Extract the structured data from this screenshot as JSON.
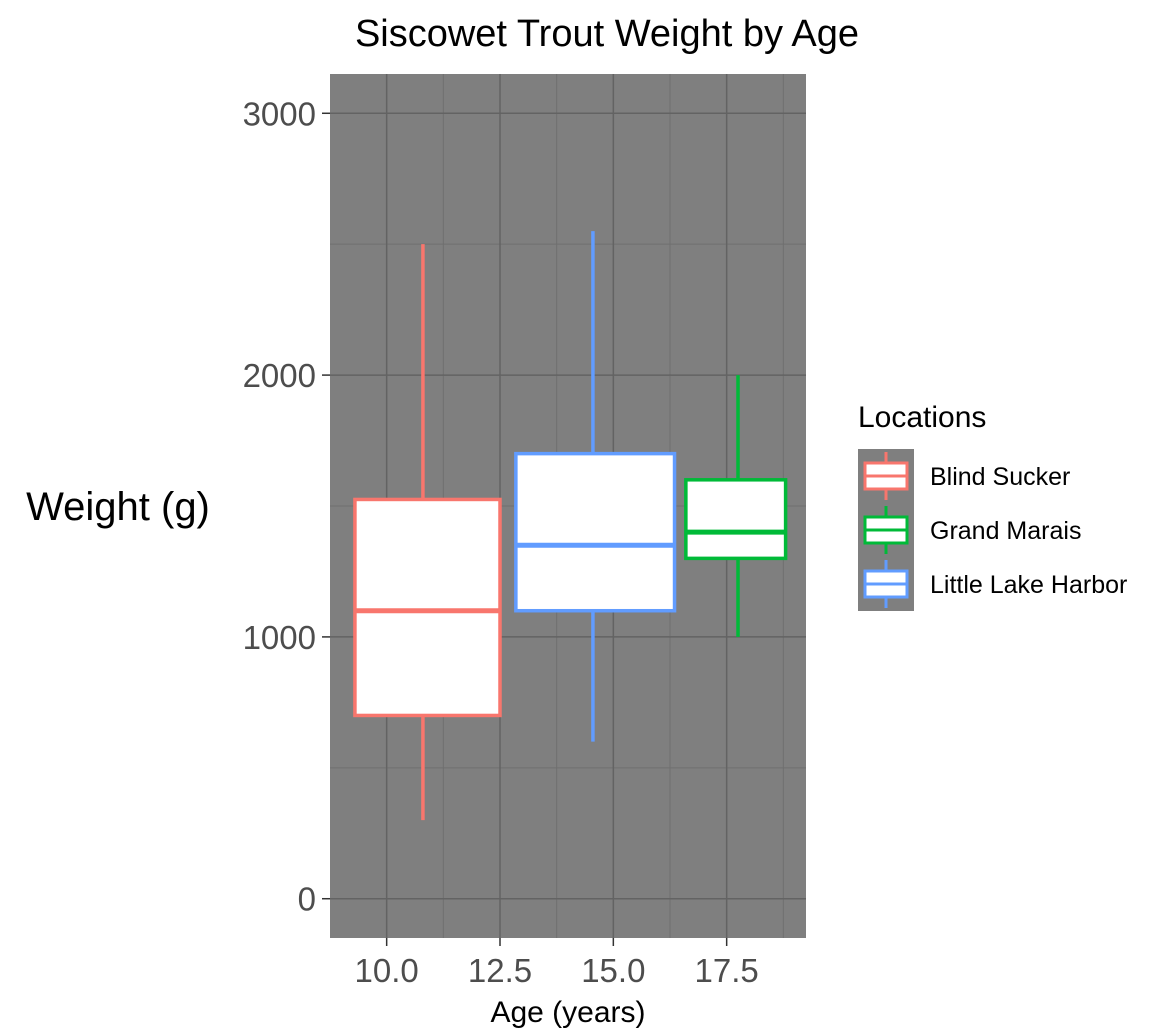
{
  "chart_data": {
    "type": "box",
    "title": "Siscowet Trout Weight by Age",
    "xlabel": "Age (years)",
    "ylabel": "Weight (g)",
    "xlim": [
      8.75,
      19.25
    ],
    "ylim": [
      -150,
      3150
    ],
    "x_ticks": [
      10.0,
      12.5,
      15.0,
      17.5
    ],
    "x_tick_labels": [
      "10.0",
      "12.5",
      "15.0",
      "17.5"
    ],
    "y_ticks": [
      0,
      1000,
      2000,
      3000
    ],
    "y_tick_labels": [
      "0",
      "1000",
      "2000",
      "3000"
    ],
    "y_minor_ticks": [
      500,
      1500,
      2500
    ],
    "x_minor_ticks": [
      11.25,
      13.75,
      16.25,
      18.75
    ],
    "grid": true,
    "panel_background": "#7f7f7f",
    "box_fill": "#ffffff",
    "legend": {
      "title": "Locations",
      "position": "right",
      "entries": [
        "Blind Sucker",
        "Grand Marais",
        "Little Lake Harbor"
      ]
    },
    "series": [
      {
        "name": "Blind Sucker",
        "color": "#F8766D",
        "x_left": 9.3,
        "x_right": 12.5,
        "whisker_x": 10.8,
        "min": 300,
        "q1": 700,
        "median": 1100,
        "q3": 1525,
        "max": 2500
      },
      {
        "name": "Little Lake Harbor",
        "color": "#619CFF",
        "x_left": 12.85,
        "x_right": 16.35,
        "whisker_x": 14.55,
        "min": 600,
        "q1": 1100,
        "median": 1350,
        "q3": 1700,
        "max": 2550
      },
      {
        "name": "Grand Marais",
        "color": "#00BA38",
        "x_left": 16.6,
        "x_right": 18.8,
        "whisker_x": 17.75,
        "min": 1000,
        "q1": 1300,
        "median": 1400,
        "q3": 1600,
        "max": 2000
      }
    ]
  }
}
